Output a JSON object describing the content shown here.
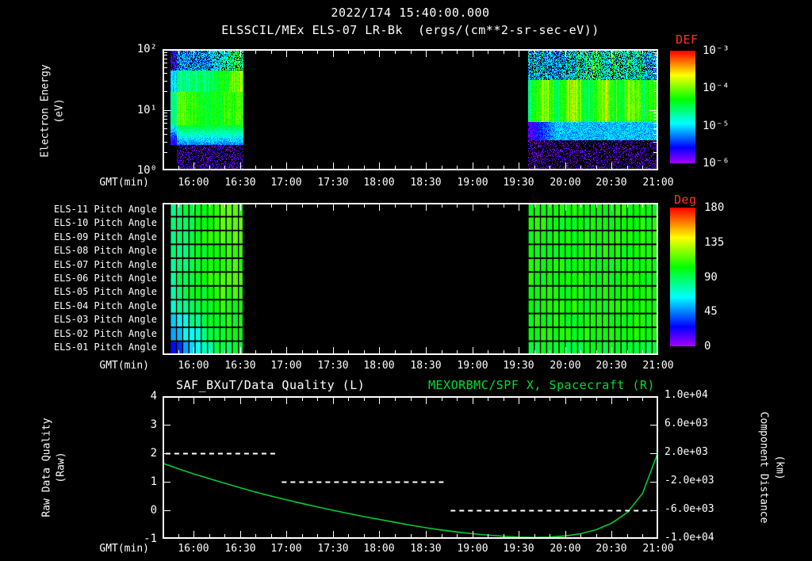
{
  "title": {
    "datetime": "2022/174 15:40:00.000",
    "instrument": "ELSSCIL/MEx ELS-07 LR-Bk",
    "units": "(ergs/(cm**2-sr-sec-eV))"
  },
  "time_axis": {
    "label": "GMT(min)",
    "start": "15:40",
    "end": "21:00",
    "total_minutes": 320,
    "ticks": [
      "16:00",
      "16:30",
      "17:00",
      "17:30",
      "18:00",
      "18:30",
      "19:00",
      "19:30",
      "20:00",
      "20:30",
      "21:00"
    ]
  },
  "top_panel": {
    "ylabel_line1": "Electron Energy",
    "ylabel_line2": "(eV)",
    "yticks": [
      "10²",
      "10¹",
      "10⁰"
    ],
    "colorbar": {
      "title": "DEF",
      "ticks": [
        "10⁻³",
        "10⁻⁴",
        "10⁻⁵",
        "10⁻⁶"
      ]
    }
  },
  "middle_panel": {
    "rows": [
      "ELS-11 Pitch Angle",
      "ELS-10 Pitch Angle",
      "ELS-09 Pitch Angle",
      "ELS-08 Pitch Angle",
      "ELS-07 Pitch Angle",
      "ELS-06 Pitch Angle",
      "ELS-05 Pitch Angle",
      "ELS-04 Pitch Angle",
      "ELS-03 Pitch Angle",
      "ELS-02 Pitch Angle",
      "ELS-01 Pitch Angle"
    ],
    "colorbar": {
      "title": "Deg",
      "ticks": [
        "180",
        "135",
        "90",
        "45",
        "0"
      ]
    }
  },
  "bottom_panel": {
    "left_title": "SAF_BXuT/Data Quality (L)",
    "right_title": "MEXORBMC/SPF X, Spacecraft (R)",
    "left_ylabel_line1": "Raw Data Quality",
    "left_ylabel_line2": "(Raw)",
    "right_ylabel_line1": "Component Distance",
    "right_ylabel_line2": "(km)",
    "left_ticks": [
      "4",
      "3",
      "2",
      "1",
      "0",
      "-1"
    ],
    "right_ticks": [
      "1.0e+04",
      "6.0e+03",
      "2.0e+03",
      "-2.0e+03",
      "-6.0e+03",
      "-1.0e+04"
    ]
  },
  "colors": {
    "background": "#000000",
    "text": "#ffffff",
    "axis": "#ffffff",
    "red_accent": "#ff3322",
    "green_accent": "#00dd33",
    "curve_green": "#00cc33"
  },
  "chart_data": [
    {
      "type": "heatmap",
      "name": "electron_energy_spectrogram",
      "title": "ELSSCIL/MEx ELS-07 LR-Bk",
      "units": "ergs/(cm**2-sr-sec-eV)",
      "x_range": [
        "15:40",
        "21:00"
      ],
      "yscale": "log",
      "ylim_eV": [
        1,
        100
      ],
      "color_scale": {
        "label": "DEF",
        "log10_range": [
          -6,
          -3
        ]
      },
      "data_intervals": [
        {
          "start": "15:45",
          "end": "16:32",
          "start_min": 5,
          "end_min": 52
        },
        {
          "start": "19:36",
          "end": "21:00",
          "start_min": 236,
          "end_min": 320
        }
      ],
      "typical_spectrum": {
        "energy_eV": [
          1,
          2,
          4,
          7,
          12,
          20,
          40,
          70,
          100
        ],
        "log10_flux": [
          -6.5,
          -6.1,
          -5.1,
          -4.4,
          -4.2,
          -4.3,
          -4.7,
          -5.2,
          -5.5
        ]
      },
      "features": [
        "flux below ~3 eV mostly under 1e-6 (black)",
        "bright cyan-green band ~5-30 eV near 1e-4.2",
        "blue-purple speckle above ~50 eV near 1e-5.5",
        "yellow-green enhancement reaching high energies near 16:20-16:32 and 20:10-20:45",
        "no data (black) between ~16:32 and ~19:36"
      ]
    },
    {
      "type": "heatmap",
      "name": "pitch_angle_rows",
      "units": "deg",
      "color_scale": {
        "label": "Deg",
        "range": [
          0,
          180
        ]
      },
      "rows": [
        "ELS-11 Pitch Angle",
        "ELS-10 Pitch Angle",
        "ELS-09 Pitch Angle",
        "ELS-08 Pitch Angle",
        "ELS-07 Pitch Angle",
        "ELS-06 Pitch Angle",
        "ELS-05 Pitch Angle",
        "ELS-04 Pitch Angle",
        "ELS-03 Pitch Angle",
        "ELS-02 Pitch Angle",
        "ELS-01 Pitch Angle"
      ],
      "intervals": [
        {
          "start": "15:45",
          "end": "16:32",
          "start_min": 5,
          "end_min": 52,
          "row_pitch_start_deg": [
            82,
            82,
            82,
            82,
            82,
            82,
            82,
            72,
            62,
            50,
            30
          ],
          "row_pitch_end_deg": [
            112,
            112,
            112,
            110,
            110,
            110,
            110,
            106,
            102,
            98,
            92
          ]
        },
        {
          "start": "19:36",
          "end": "21:00",
          "start_min": 236,
          "end_min": 320,
          "row_pitch_deg": [
            103,
            103,
            103,
            103,
            103,
            103,
            103,
            103,
            103,
            103,
            95
          ]
        }
      ]
    },
    {
      "type": "line",
      "name": "data_quality_and_spacecraft_x",
      "left_axis": {
        "label": "Raw Data Quality (Raw)",
        "range": [
          -1,
          4
        ]
      },
      "right_axis": {
        "label": "Component Distance (km)",
        "range": [
          -10000,
          10000
        ]
      },
      "series": [
        {
          "name": "SAF_BXuT/Data Quality (L)",
          "axis": "left",
          "color": "#ffffff",
          "style": "dashed",
          "segments": [
            {
              "start": "15:42",
              "end": "16:53",
              "start_min": 2,
              "end_min": 73,
              "value": 2
            },
            {
              "start": "16:57",
              "end": "18:42",
              "start_min": 77,
              "end_min": 182,
              "value": 1
            },
            {
              "start": "18:46",
              "end": "20:56",
              "start_min": 186,
              "end_min": 316,
              "value": 0
            }
          ]
        },
        {
          "name": "MEXORBMC/SPF X, Spacecraft (R)",
          "axis": "right",
          "color": "#00cc33",
          "style": "solid",
          "x_min": [
            0,
            10,
            20,
            30,
            40,
            50,
            60,
            70,
            80,
            90,
            100,
            110,
            120,
            130,
            140,
            150,
            160,
            170,
            180,
            190,
            200,
            210,
            220,
            230,
            240,
            250,
            260,
            270,
            280,
            290,
            300,
            310,
            320
          ],
          "km": [
            600,
            -160,
            -880,
            -1560,
            -2200,
            -2840,
            -3440,
            -4000,
            -4520,
            -5040,
            -5520,
            -6000,
            -6440,
            -6880,
            -7280,
            -7680,
            -8080,
            -8440,
            -8760,
            -9040,
            -9280,
            -9480,
            -9640,
            -9760,
            -9800,
            -9760,
            -9600,
            -9280,
            -8720,
            -7800,
            -6320,
            -3600,
            2200
          ]
        }
      ]
    }
  ]
}
